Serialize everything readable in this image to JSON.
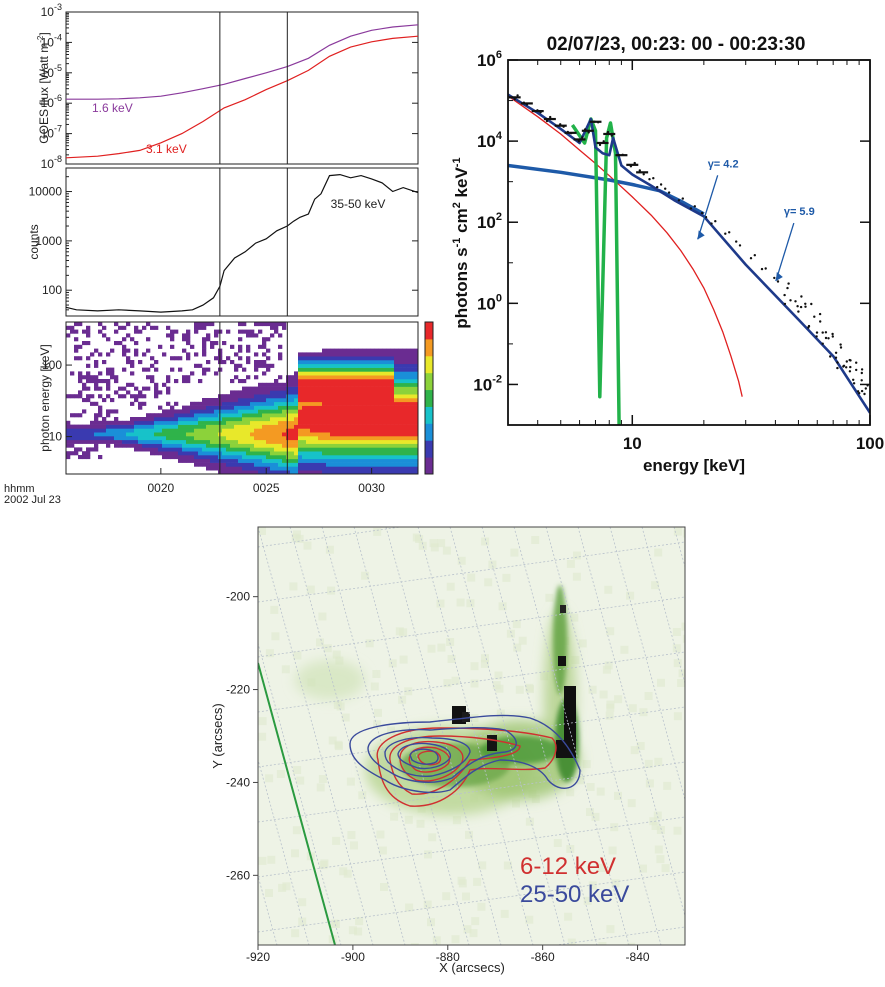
{
  "chart_data": [
    {
      "type": "line",
      "ylabel": "GOES flux [Watt m",
      "ylabel_sup": "-2",
      "ylabel_end": "]",
      "y_scale": "log",
      "ylim": [
        1e-08,
        0.001
      ],
      "y_ticks": [
        {
          "v": 1e-08,
          "base": "10",
          "exp": "-8"
        },
        {
          "v": 1e-07,
          "base": "10",
          "exp": "-7"
        },
        {
          "v": 1e-06,
          "base": "10",
          "exp": "-6"
        },
        {
          "v": 1e-05,
          "base": "10",
          "exp": "-5"
        },
        {
          "v": 0.0001,
          "base": "10",
          "exp": "-4"
        },
        {
          "v": 0.001,
          "base": "10",
          "exp": "-3"
        }
      ],
      "x_range": [
        15.5,
        32.2
      ],
      "markers": [
        22.8,
        26.0
      ],
      "series": [
        {
          "name": "1.6 keV",
          "color": "#8a3a9c",
          "x": [
            15.5,
            17,
            18,
            19,
            20,
            21,
            22,
            23,
            24,
            25,
            26,
            27,
            28,
            29,
            30,
            31,
            32.2
          ],
          "values": [
            1.35e-06,
            1.35e-06,
            1.4e-06,
            1.5e-06,
            1.7e-06,
            2.2e-06,
            3e-06,
            4.2e-06,
            6.5e-06,
            1e-05,
            1.6e-05,
            3e-05,
            8e-05,
            0.00016,
            0.00025,
            0.00032,
            0.00038
          ]
        },
        {
          "name": "3.1 keV",
          "color": "#e02020",
          "x": [
            15.5,
            17,
            18,
            19,
            20,
            21,
            22,
            23,
            24,
            25,
            26,
            27,
            28,
            29,
            30,
            31,
            32.2
          ],
          "values": [
            1.6e-08,
            1.8e-08,
            2.2e-08,
            2.8e-08,
            5e-08,
            1e-07,
            2.5e-07,
            7e-07,
            1.3e-06,
            2.8e-06,
            5.5e-06,
            1.2e-05,
            3.5e-05,
            7e-05,
            0.000105,
            0.000135,
            0.00016
          ]
        }
      ]
    },
    {
      "type": "line",
      "ylabel": "counts",
      "y_scale": "log",
      "ylim": [
        30,
        30000
      ],
      "y_ticks": [
        {
          "v": 100,
          "label": "100"
        },
        {
          "v": 1000,
          "label": "1000"
        },
        {
          "v": 10000,
          "label": "10000"
        }
      ],
      "x_range": [
        15.5,
        32.2
      ],
      "markers": [
        22.8,
        26.0
      ],
      "series": [
        {
          "name": "35-50 keV",
          "color": "#111111",
          "x": [
            15.5,
            16,
            17,
            18,
            19,
            20,
            21,
            21.5,
            22,
            22.5,
            22.8,
            23,
            23.5,
            24,
            24.5,
            25,
            25.5,
            26,
            26.3,
            26.6,
            27,
            27.3,
            27.6,
            28,
            28.5,
            29,
            29.5,
            30,
            30.5,
            31,
            31.5,
            32.2
          ],
          "values": [
            45,
            40,
            38,
            40,
            38,
            36,
            38,
            40,
            50,
            70,
            120,
            250,
            450,
            600,
            900,
            1100,
            1600,
            2000,
            2500,
            3000,
            3500,
            7000,
            9000,
            21000,
            22000,
            19000,
            21000,
            18000,
            15000,
            10000,
            12000,
            9500
          ]
        }
      ]
    },
    {
      "type": "heatmap",
      "ylabel": "photon energy [keV]",
      "y_scale": "log",
      "ylim": [
        3,
        400
      ],
      "y_ticks": [
        {
          "v": 10,
          "label": "10"
        },
        {
          "v": 100,
          "label": "100"
        }
      ],
      "x_range": [
        15.5,
        32.2
      ],
      "x_ticks": [
        {
          "v": 20,
          "label": "0020"
        },
        {
          "v": 25,
          "label": "0025"
        },
        {
          "v": 30,
          "label": "0030"
        }
      ],
      "x_caption_1": "hhmm",
      "x_caption_2": "2002 Jul 23",
      "markers": [
        22.8,
        26.0
      ]
    },
    {
      "type": "scatter",
      "title": "02/07/23, 00:23:  00 - 00:23:30",
      "xlabel": "energy   [keV]",
      "ylabel": "photons   s",
      "x_scale": "log",
      "y_scale": "log",
      "xlim": [
        3,
        100
      ],
      "ylim": [
        0.001,
        1000000
      ],
      "x_ticks": [
        {
          "v": 10,
          "label": "10"
        },
        {
          "v": 100,
          "label": "100"
        }
      ],
      "y_ticks": [
        {
          "v": 1000000,
          "base": "10",
          "exp": "6"
        },
        {
          "v": 10000,
          "base": "10",
          "exp": "4"
        },
        {
          "v": 100,
          "base": "10",
          "exp": "2"
        },
        {
          "v": 1,
          "base": "10",
          "exp": "0"
        },
        {
          "v": 0.01,
          "base": "10",
          "exp": "-2"
        }
      ],
      "annotations": [
        {
          "text": "γ= 4.2",
          "x": 22,
          "y": 1800
        },
        {
          "text": "γ= 5.9",
          "x": 46,
          "y": 120
        }
      ],
      "series": [
        {
          "name": "thermal",
          "color": "#e02020",
          "x": [
            3,
            4,
            5,
            6,
            7,
            8,
            10,
            12,
            14,
            16,
            18,
            20,
            22,
            24,
            26,
            28,
            29
          ],
          "values": [
            130000,
            40000,
            15000,
            6000,
            2800,
            1400,
            420,
            150,
            55,
            20,
            7,
            2.4,
            0.7,
            0.2,
            0.05,
            0.012,
            0.005
          ]
        },
        {
          "name": "nonthermal",
          "color": "#1e5aa8",
          "x": [
            3,
            5,
            8,
            10,
            13,
            16,
            20
          ],
          "values": [
            2500,
            1700,
            1100,
            850,
            600,
            330,
            160
          ]
        },
        {
          "name": "lines",
          "color": "#22b24a",
          "x": [
            5.6,
            6.3,
            6.7,
            7.0,
            7.3,
            7.8,
            8.1,
            8.5,
            8.8
          ],
          "values": [
            25000,
            9000,
            35000,
            18000,
            0.005,
            12000,
            28000,
            5000,
            0.001
          ]
        },
        {
          "name": "total",
          "color": "#1e3a8a",
          "x": [
            3,
            4,
            5,
            6,
            6.7,
            7.0,
            7.5,
            8.0,
            8.3,
            9,
            10,
            12,
            15,
            20,
            30,
            50,
            70,
            100
          ],
          "values": [
            140000,
            50000,
            20000,
            9000,
            35000,
            7000,
            5000,
            4500,
            12000,
            2500,
            1500,
            800,
            350,
            140,
            9,
            0.4,
            0.05,
            0.002
          ]
        },
        {
          "name": "data",
          "color": "#111111",
          "x": [
            3.2,
            3.6,
            4,
            4.5,
            5,
            5.5,
            6,
            6.5,
            7,
            7.5,
            8,
            9,
            10,
            11,
            12,
            13,
            14,
            16,
            18,
            20,
            22,
            25,
            28,
            32,
            36,
            40,
            45,
            50,
            55,
            60,
            65,
            70,
            75,
            80,
            85,
            90,
            95
          ],
          "values": [
            120000,
            85000,
            55000,
            35000,
            24000,
            16000,
            11000,
            18000,
            30000,
            9000,
            15000,
            4500,
            2600,
            1700,
            1200,
            800,
            600,
            360,
            230,
            150,
            100,
            55,
            30,
            14,
            7,
            3.8,
            1.8,
            0.9,
            0.5,
            0.28,
            0.15,
            0.09,
            0.05,
            0.03,
            0.02,
            0.012,
            0.008
          ]
        }
      ]
    },
    {
      "type": "contour",
      "xlabel": "X (arcsecs)",
      "ylabel": "Y (arcsecs)",
      "xlim": [
        -920,
        -830
      ],
      "ylim": [
        -275,
        -185
      ],
      "x_ticks": [
        {
          "v": -920,
          "label": "-920"
        },
        {
          "v": -900,
          "label": "-900"
        },
        {
          "v": -880,
          "label": "-880"
        },
        {
          "v": -860,
          "label": "-860"
        },
        {
          "v": -840,
          "label": "-840"
        }
      ],
      "y_ticks": [
        {
          "v": -200,
          "label": "-200"
        },
        {
          "v": -220,
          "label": "-220"
        },
        {
          "v": -240,
          "label": "-240"
        },
        {
          "v": -260,
          "label": "-260"
        }
      ],
      "legend": [
        {
          "text": "6-12 keV",
          "color": "#d03030"
        },
        {
          "text": "25-50 keV",
          "color": "#3a4a9c"
        }
      ],
      "limb_color": "#2a9a40"
    }
  ]
}
